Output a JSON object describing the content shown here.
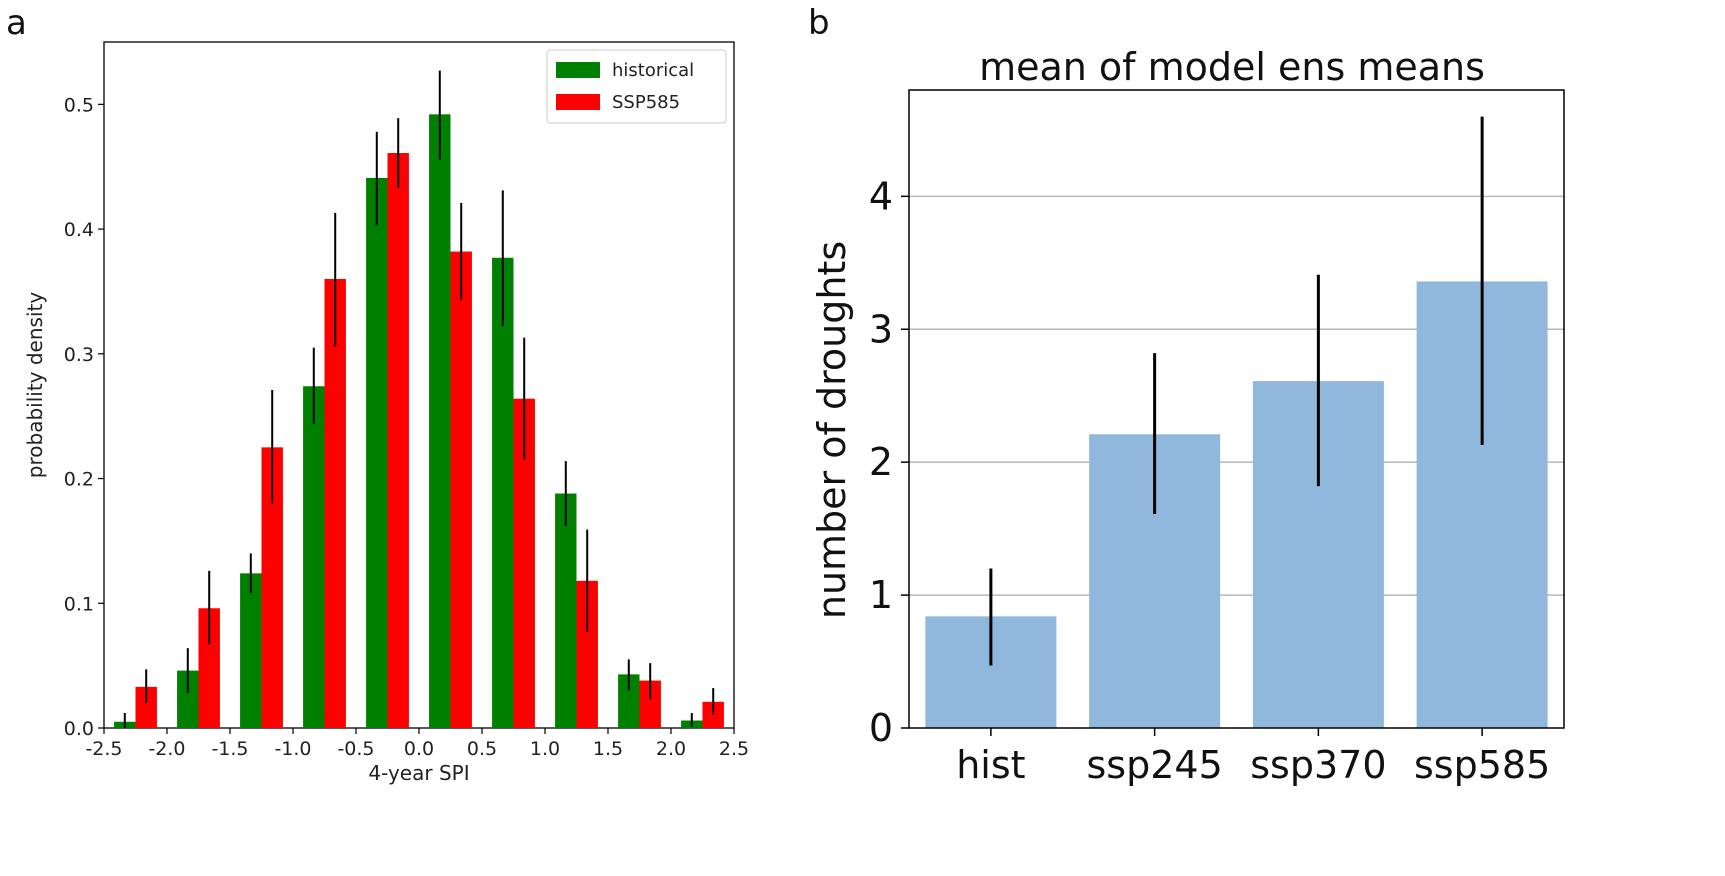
{
  "chart_data": [
    {
      "panel": "a",
      "type": "bar",
      "xlabel": "4-year SPI",
      "ylabel": "probability density",
      "xlim": [
        -2.5,
        2.5
      ],
      "ylim": [
        0.0,
        0.55
      ],
      "xticks": [
        "-2.5",
        "-2.0",
        "-1.5",
        "-1.0",
        "-0.5",
        "0.0",
        "0.5",
        "1.0",
        "1.5",
        "2.0",
        "2.5"
      ],
      "yticks": [
        "0.0",
        "0.1",
        "0.2",
        "0.3",
        "0.4",
        "0.5"
      ],
      "legend_position": "top-right",
      "categories": [
        -2.25,
        -1.75,
        -1.25,
        -0.75,
        -0.25,
        0.25,
        0.75,
        1.25,
        1.75,
        2.25
      ],
      "series": [
        {
          "name": "historical",
          "color": "#008000",
          "values": [
            0.005,
            0.046,
            0.124,
            0.274,
            0.441,
            0.492,
            0.377,
            0.188,
            0.043,
            0.006
          ],
          "err_low": [
            0.0,
            0.028,
            0.108,
            0.244,
            0.403,
            0.456,
            0.322,
            0.162,
            0.03,
            0.001
          ],
          "err_high": [
            0.012,
            0.064,
            0.14,
            0.305,
            0.478,
            0.527,
            0.431,
            0.214,
            0.055,
            0.012
          ]
        },
        {
          "name": "SSP585",
          "color": "#ff0000",
          "values": [
            0.033,
            0.096,
            0.225,
            0.36,
            0.461,
            0.382,
            0.264,
            0.118,
            0.038,
            0.021
          ],
          "err_low": [
            0.02,
            0.067,
            0.18,
            0.306,
            0.433,
            0.343,
            0.215,
            0.077,
            0.023,
            0.011
          ],
          "err_high": [
            0.047,
            0.126,
            0.271,
            0.413,
            0.489,
            0.421,
            0.313,
            0.159,
            0.052,
            0.032
          ]
        }
      ]
    },
    {
      "panel": "b",
      "type": "bar",
      "title": "mean of model ens means",
      "xlabel": "",
      "ylabel": "number of droughts",
      "ylim": [
        0,
        4.8
      ],
      "yticks": [
        "0",
        "1",
        "2",
        "3",
        "4"
      ],
      "grid": "horizontal",
      "color": "#8fb8dc",
      "categories": [
        "hist",
        "ssp245",
        "ssp370",
        "ssp585"
      ],
      "values": [
        0.84,
        2.21,
        2.61,
        3.36
      ],
      "err_low": [
        0.47,
        1.61,
        1.82,
        2.13
      ],
      "err_high": [
        1.2,
        2.82,
        3.41,
        4.6
      ]
    }
  ]
}
